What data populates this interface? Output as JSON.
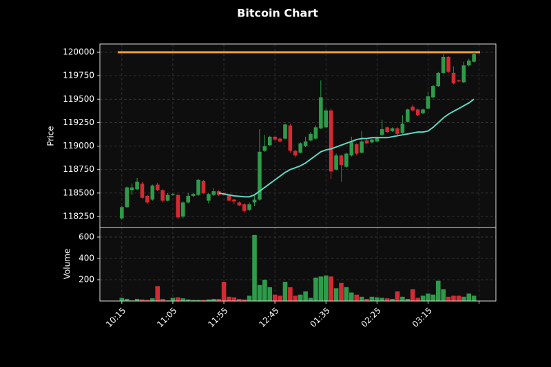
{
  "chart_data": {
    "type": "candlestick",
    "title": "Bitcoin Chart",
    "ylabel": "Price",
    "volume_label": "Volume",
    "up_color": "#2e9b4a",
    "down_color": "#d42a33",
    "xlim": [
      -4.3,
      73.3
    ],
    "xticks": [
      {
        "value": 0,
        "label": "10:15"
      },
      {
        "value": 10,
        "label": "11:05"
      },
      {
        "value": 20,
        "label": "11:55"
      },
      {
        "value": 30,
        "label": "12:45"
      },
      {
        "value": 40,
        "label": "01:35"
      },
      {
        "value": 50,
        "label": "02:25"
      },
      {
        "value": 60,
        "label": "03:15"
      },
      {
        "value": 70,
        "label": null
      }
    ],
    "ylim": [
      118133,
      120088
    ],
    "yticks": [
      118250,
      118500,
      118750,
      119000,
      119250,
      119500,
      119750,
      120000
    ],
    "volume_ylim": [
      0,
      690
    ],
    "volume_yticks": [
      200,
      400,
      600
    ],
    "grid": true,
    "open": [
      118230,
      118350,
      118530,
      118540,
      118600,
      118470,
      118430,
      118590,
      118530,
      118420,
      118480,
      118480,
      118250,
      118400,
      118470,
      118480,
      118630,
      118420,
      118480,
      118520,
      118500,
      118480,
      118430,
      118400,
      118380,
      118320,
      118400,
      118430,
      118950,
      119010,
      119100,
      119080,
      119080,
      119220,
      118950,
      118930,
      119000,
      119060,
      119080,
      119190,
      119200,
      119380,
      118750,
      118900,
      118780,
      118900,
      119020,
      118930,
      119060,
      119040,
      119050,
      119120,
      119200,
      119160,
      119190,
      119140,
      119260,
      119420,
      119390,
      119350,
      119400,
      119520,
      119640,
      119780,
      119950,
      119780,
      119700,
      119680,
      119860,
      119900
    ],
    "high": [
      118360,
      118570,
      118600,
      118660,
      118620,
      118480,
      118590,
      118610,
      118540,
      118500,
      118500,
      118490,
      118410,
      118500,
      118500,
      118650,
      118640,
      118500,
      118550,
      118530,
      118510,
      118490,
      118440,
      118410,
      118390,
      118400,
      118470,
      119180,
      119120,
      119110,
      119110,
      119090,
      119240,
      119240,
      118960,
      119040,
      119100,
      119150,
      119220,
      119700,
      119400,
      119400,
      118920,
      118910,
      118930,
      119100,
      119030,
      119160,
      119070,
      119080,
      119100,
      119280,
      119210,
      119200,
      119200,
      119330,
      119400,
      119440,
      119400,
      119400,
      119580,
      119650,
      119790,
      119980,
      119960,
      119850,
      119710,
      119900,
      119930,
      120000
    ],
    "low": [
      118220,
      118340,
      118480,
      118530,
      118440,
      118380,
      118420,
      118520,
      118400,
      118410,
      118470,
      118220,
      118230,
      118390,
      118460,
      118470,
      118490,
      118390,
      118470,
      118470,
      118470,
      118410,
      118380,
      118360,
      118290,
      118310,
      118360,
      118420,
      118940,
      119000,
      119060,
      119040,
      119070,
      118930,
      118880,
      118920,
      118990,
      119050,
      119070,
      119180,
      119190,
      118650,
      118740,
      118620,
      118770,
      118890,
      118900,
      118920,
      119020,
      119030,
      119040,
      119110,
      119140,
      119150,
      119120,
      119130,
      119250,
      119370,
      119320,
      119340,
      119390,
      119510,
      119630,
      119770,
      119780,
      119660,
      119680,
      119670,
      119850,
      119890
    ],
    "close": [
      118350,
      118560,
      118560,
      118620,
      118450,
      118400,
      118580,
      118530,
      118420,
      118480,
      118490,
      118240,
      118400,
      118470,
      118490,
      118640,
      118500,
      118490,
      118520,
      118480,
      118480,
      118420,
      118410,
      118370,
      118310,
      118380,
      118430,
      118940,
      119000,
      119100,
      119070,
      119050,
      119230,
      118950,
      118900,
      119030,
      119050,
      119130,
      119200,
      119520,
      119380,
      118730,
      118900,
      118800,
      118920,
      119040,
      118920,
      119050,
      119030,
      119070,
      119090,
      119180,
      119150,
      119190,
      119130,
      119240,
      119390,
      119380,
      119330,
      119390,
      119530,
      119640,
      119780,
      119950,
      119790,
      119670,
      119690,
      119860,
      119910,
      119980
    ],
    "volume": [
      30,
      20,
      5,
      20,
      15,
      10,
      25,
      140,
      20,
      5,
      30,
      35,
      25,
      15,
      10,
      10,
      10,
      15,
      20,
      20,
      180,
      40,
      35,
      20,
      15,
      50,
      620,
      150,
      200,
      130,
      60,
      50,
      180,
      130,
      50,
      60,
      90,
      30,
      220,
      230,
      240,
      230,
      120,
      170,
      130,
      80,
      60,
      40,
      20,
      40,
      35,
      30,
      25,
      20,
      90,
      40,
      20,
      110,
      30,
      50,
      70,
      60,
      190,
      110,
      40,
      50,
      50,
      40,
      70,
      50
    ],
    "ma": {
      "color": "#5fd9c4",
      "values": [
        null,
        null,
        null,
        null,
        null,
        null,
        null,
        null,
        null,
        null,
        null,
        null,
        null,
        null,
        null,
        null,
        null,
        null,
        null,
        118500,
        118490,
        118480,
        118470,
        118465,
        118460,
        118460,
        118480,
        118520,
        118560,
        118600,
        118640,
        118680,
        118720,
        118750,
        118770,
        118790,
        118820,
        118860,
        118900,
        118940,
        118960,
        118970,
        118990,
        119010,
        119030,
        119050,
        119070,
        119080,
        119080,
        119090,
        119090,
        119090,
        119090,
        119100,
        119110,
        119120,
        119130,
        119140,
        119150,
        119150,
        119160,
        119200,
        119250,
        119300,
        119340,
        119370,
        119400,
        119430,
        119460,
        119500
      ]
    },
    "hline": {
      "value": 120000,
      "color": "#f0a03c"
    }
  }
}
